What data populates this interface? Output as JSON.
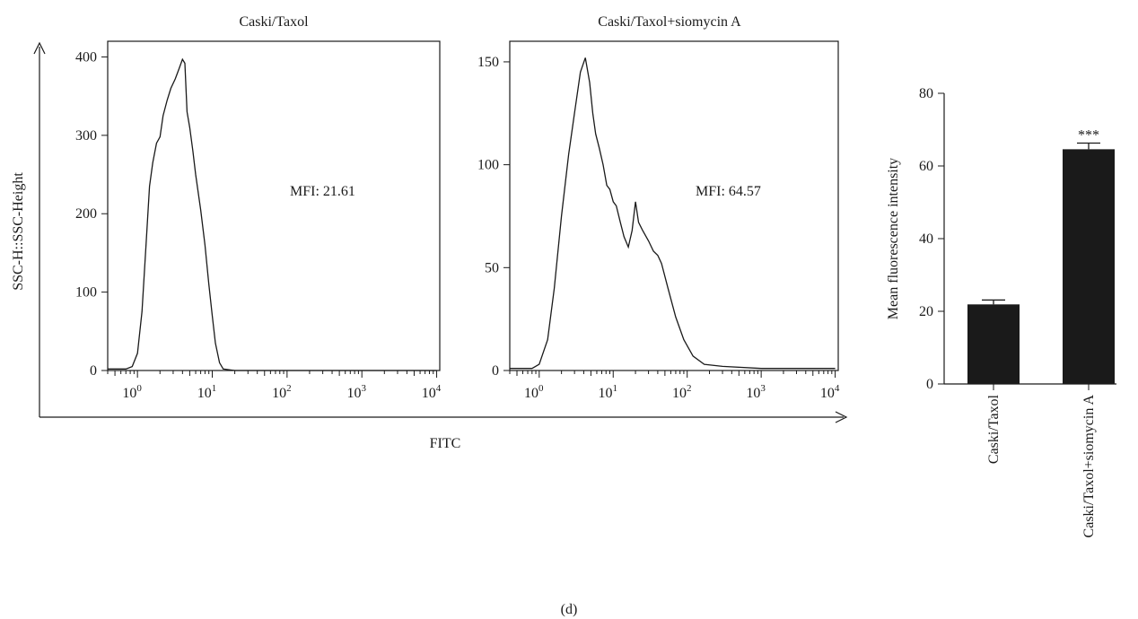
{
  "figure": {
    "shared_xlabel": "FITC",
    "shared_ylabel": "SSC-H::SSC-Height",
    "panel_label": "(d)"
  },
  "chart_data": [
    {
      "type": "line",
      "title": "Caski/Taxol",
      "xlabel": "FITC",
      "ylabel": "SSC-H::SSC-Height",
      "x_scale": "log",
      "xlim": [
        0.4,
        11000
      ],
      "ylim": [
        0,
        420
      ],
      "yticks": [
        0,
        100,
        200,
        300,
        400
      ],
      "xticks": [
        {
          "value": 1,
          "base": "10",
          "exp": "0"
        },
        {
          "value": 10,
          "base": "10",
          "exp": "1"
        },
        {
          "value": 100,
          "base": "10",
          "exp": "2"
        },
        {
          "value": 1000,
          "base": "10",
          "exp": "3"
        },
        {
          "value": 10000,
          "base": "10",
          "exp": "4"
        }
      ],
      "annotation": "MFI: 21.61",
      "series": [
        {
          "x": [
            0.4,
            0.7,
            0.85,
            1.0,
            1.15,
            1.3,
            1.45,
            1.6,
            1.8,
            2.0,
            2.2,
            2.5,
            2.8,
            3.2,
            3.6,
            4.0,
            4.3,
            4.6,
            5.0,
            5.5,
            6.0,
            7.0,
            8.0,
            9.0,
            10.0,
            11.0,
            12.5,
            14.0,
            20.0,
            100.0,
            1000.0,
            10000.0
          ],
          "y": [
            2,
            2,
            5,
            22,
            75,
            160,
            235,
            265,
            290,
            298,
            325,
            345,
            360,
            372,
            385,
            397,
            392,
            330,
            310,
            280,
            250,
            205,
            160,
            110,
            70,
            35,
            10,
            2,
            0,
            0,
            0,
            0
          ]
        }
      ]
    },
    {
      "type": "line",
      "title": "Caski/Taxol+siomycin A",
      "xlabel": "FITC",
      "ylabel": "",
      "x_scale": "log",
      "xlim": [
        0.4,
        11000
      ],
      "ylim": [
        0,
        160
      ],
      "yticks": [
        0,
        50,
        100,
        150
      ],
      "xticks": [
        {
          "value": 1,
          "base": "10",
          "exp": "0"
        },
        {
          "value": 10,
          "base": "10",
          "exp": "1"
        },
        {
          "value": 100,
          "base": "10",
          "exp": "2"
        },
        {
          "value": 1000,
          "base": "10",
          "exp": "3"
        },
        {
          "value": 10000,
          "base": "10",
          "exp": "4"
        }
      ],
      "annotation": "MFI: 64.57",
      "series": [
        {
          "x": [
            0.4,
            0.8,
            1.0,
            1.3,
            1.6,
            2.0,
            2.5,
            3.0,
            3.6,
            4.2,
            4.8,
            5.3,
            5.8,
            6.5,
            7.3,
            8.2,
            9.0,
            10.0,
            11.0,
            12.5,
            14.0,
            16.0,
            18.0,
            20.0,
            22.0,
            25.0,
            30.0,
            35.0,
            40.0,
            45.0,
            55.0,
            70.0,
            90.0,
            120.0,
            170.0,
            300.0,
            1000.0,
            10000.0
          ],
          "y": [
            1,
            1,
            3,
            15,
            40,
            75,
            105,
            125,
            145,
            152,
            140,
            125,
            115,
            108,
            100,
            90,
            88,
            82,
            80,
            72,
            65,
            60,
            68,
            82,
            72,
            68,
            63,
            58,
            56,
            52,
            40,
            26,
            15,
            7,
            3,
            2,
            1,
            1
          ]
        }
      ]
    },
    {
      "type": "bar",
      "title": "",
      "xlabel": "",
      "ylabel": "Mean fluorescence intensity",
      "ylim": [
        0,
        80
      ],
      "yticks": [
        0,
        20,
        40,
        60,
        80
      ],
      "categories": [
        "Caski/Taxol",
        "Caski/Taxol+siomycin A"
      ],
      "values": [
        21.9,
        64.6
      ],
      "errors": [
        1.2,
        1.7
      ],
      "significance": [
        "",
        "***"
      ]
    }
  ]
}
